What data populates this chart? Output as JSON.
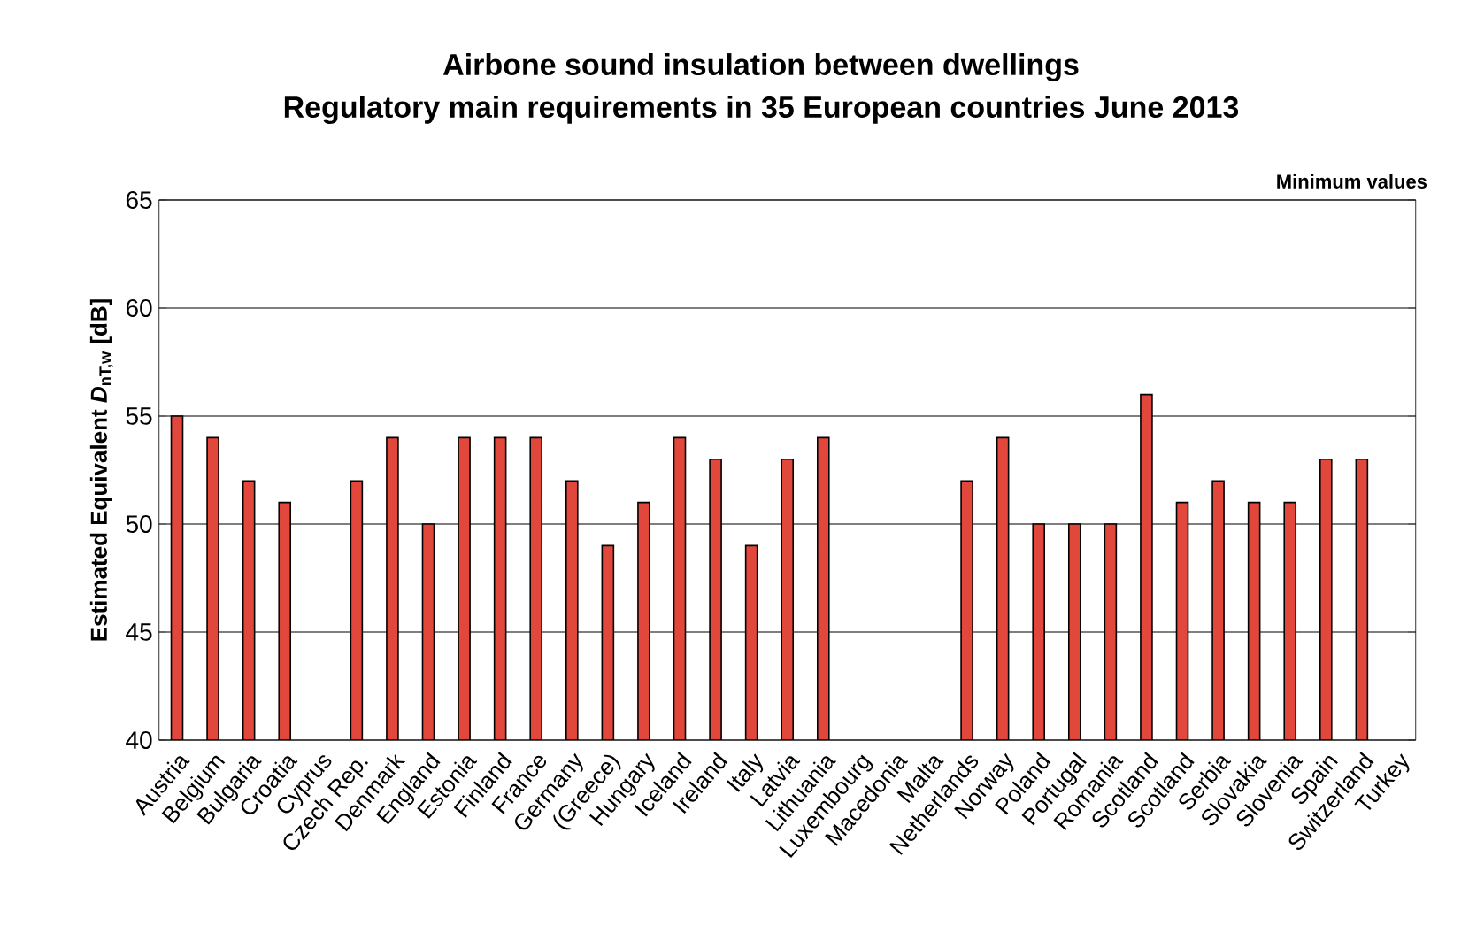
{
  "chart_data": {
    "type": "bar",
    "title": "Airbone sound insulation between dwellings",
    "subtitle": "Regulatory main requirements in 35 European countries June 2013",
    "ylabel": "Estimated Equivalent *D*$_{nT,w}$ [dB]",
    "annotations": [
      "Minimum values"
    ],
    "categories": [
      "Austria",
      "Belgium",
      "Bulgaria",
      "Croatia",
      "Cyprus",
      "Czech Rep.",
      "Denmark",
      "England",
      "Estonia",
      "Finland",
      "France",
      "Germany",
      "(Greece)",
      "Hungary",
      "Iceland",
      "Ireland",
      "Italy",
      "Latvia",
      "Lithuania",
      "Luxembourg",
      "Macedonia",
      "Malta",
      "Netherlands",
      "Norway",
      "Poland",
      "Portugal",
      "Romania",
      "Scotland",
      "Scotland",
      "Serbia",
      "Slovakia",
      "Slovenia",
      "Spain",
      "Switzerland",
      "Turkey"
    ],
    "values": [
      55,
      54,
      52,
      51,
      null,
      52,
      54,
      50,
      54,
      54,
      54,
      52,
      49,
      51,
      54,
      53,
      49,
      53,
      54,
      null,
      null,
      null,
      52,
      54,
      50,
      50,
      50,
      56,
      51,
      52,
      51,
      51,
      53,
      53,
      null
    ],
    "color": "#e2473c",
    "ylim": [
      40,
      65
    ],
    "yticks": [
      40,
      45,
      50,
      55,
      60,
      65
    ],
    "grid": "y"
  }
}
